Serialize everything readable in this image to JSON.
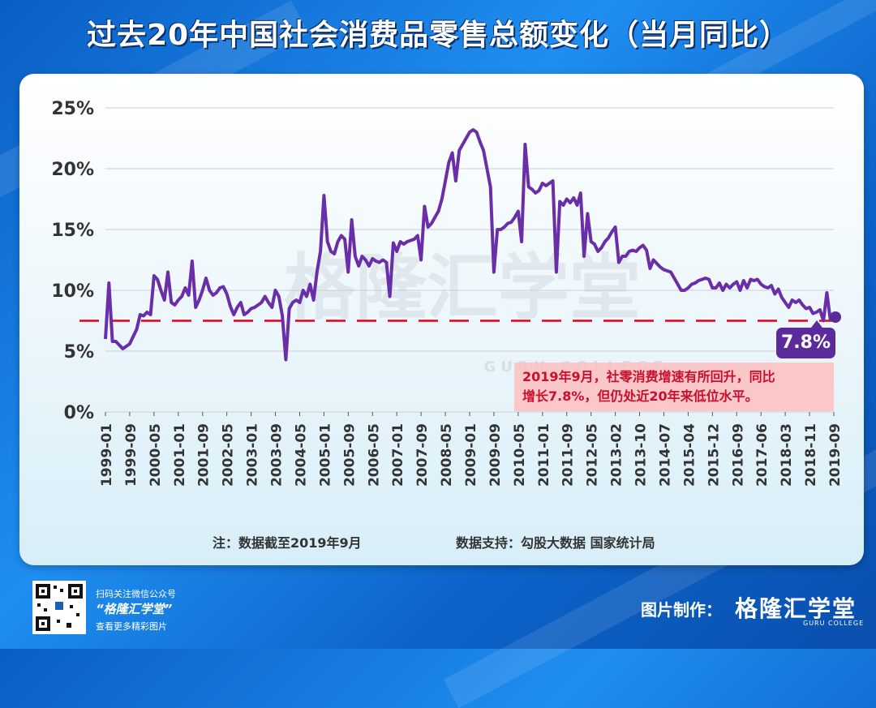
{
  "title": "过去20年中国社会消费品零售总额变化（当月同比）",
  "annotation": {
    "callout_line1": "2019年9月，社零消费增速有所回升，同比",
    "callout_line2": "增长7.8%，但仍处近20年来低位水平。",
    "value_label": "7.8%",
    "reference_line": 7.5,
    "reference_color": "#e2001a"
  },
  "watermark": {
    "text": "格隆汇学堂",
    "sub": "GURU COLLEGE"
  },
  "footnote": {
    "left": "注：数据截至2019年9月",
    "right": "数据支持：勾股大数据 国家统计局"
  },
  "footer": {
    "qr_line1": "扫码关注微信公众号",
    "qr_name": "“格隆汇学堂”",
    "qr_line3": "查看更多精彩图片",
    "credit_label": "图片制作：",
    "credit_logo": "格隆汇学堂",
    "credit_sub": "GURU COLLEGE"
  },
  "colors": {
    "line": "#6a2fa8",
    "accent": "#5b2a9b",
    "background": "#1f8ef0"
  },
  "chart_data": {
    "type": "line",
    "title": "过去20年中国社会消费品零售总额变化（当月同比）",
    "xlabel": "",
    "ylabel": "",
    "ylim": [
      0,
      25
    ],
    "yticks": [
      "0%",
      "5%",
      "10%",
      "15%",
      "20%",
      "25%"
    ],
    "grid": true,
    "xticks": [
      "1999-01",
      "1999-09",
      "2000-05",
      "2001-01",
      "2001-09",
      "2002-05",
      "2003-01",
      "2003-09",
      "2004-05",
      "2005-01",
      "2005-09",
      "2006-05",
      "2007-01",
      "2007-09",
      "2008-05",
      "2009-01",
      "2009-09",
      "2010-05",
      "2011-01",
      "2011-09",
      "2012-05",
      "2013-02",
      "2013-10",
      "2014-07",
      "2015-04",
      "2015-12",
      "2016-09",
      "2017-06",
      "2018-03",
      "2018-11",
      "2019-09"
    ],
    "series": [
      {
        "values": [
          6.0,
          10.6,
          5.8,
          5.8,
          5.5,
          5.2,
          5.4,
          5.6,
          6.2,
          6.8,
          8.0,
          7.9,
          8.2,
          8.0,
          11.2,
          10.9,
          10.0,
          9.2,
          11.5,
          9.0,
          8.8,
          9.2,
          9.5,
          10.2,
          9.6,
          12.4,
          8.6,
          9.2,
          10.0,
          11.0,
          10.0,
          9.6,
          9.8,
          10.2,
          10.3,
          9.7,
          8.7,
          8.0,
          8.6,
          9.0,
          8.0,
          8.2,
          8.5,
          8.6,
          8.8,
          9.0,
          9.5,
          9.0,
          8.6,
          10.0,
          9.5,
          7.9,
          4.3,
          8.5,
          9.0,
          9.2,
          9.0,
          10.0,
          9.5,
          10.5,
          9.2,
          11.5,
          13.2,
          17.8,
          14.0,
          13.2,
          13.0,
          14.0,
          14.5,
          14.2,
          11.5,
          15.8,
          12.8,
          12.0,
          12.8,
          12.5,
          12.0,
          12.6,
          12.4,
          12.3,
          12.5,
          12.3,
          9.5,
          13.9,
          13.2,
          14.0,
          13.8,
          14.0,
          14.1,
          14.2,
          14.5,
          12.5,
          16.9,
          15.2,
          15.5,
          16.0,
          16.5,
          17.5,
          19.0,
          20.5,
          21.3,
          19.0,
          21.5,
          22.0,
          22.5,
          23.0,
          23.2,
          23.0,
          22.2,
          21.5,
          20.0,
          18.5,
          11.5,
          15.0,
          15.0,
          15.2,
          15.5,
          15.6,
          16.0,
          16.5,
          14.0,
          22.0,
          18.5,
          18.3,
          18.0,
          18.2,
          18.8,
          18.6,
          18.8,
          19.0,
          11.5,
          17.3,
          17.0,
          17.5,
          17.2,
          17.6,
          17.0,
          18.0,
          12.8,
          16.3,
          14.0,
          13.8,
          13.2,
          13.5,
          14.0,
          14.3,
          14.8,
          15.2,
          12.3,
          12.8,
          12.8,
          13.2,
          13.3,
          13.2,
          13.5,
          13.7,
          13.3,
          11.8,
          12.5,
          12.2,
          11.9,
          11.7,
          11.6,
          11.5,
          11.0,
          10.5,
          10.0,
          10.0,
          10.2,
          10.5,
          10.6,
          10.8,
          10.9,
          11.0,
          10.9,
          10.2,
          10.2,
          10.6,
          10.0,
          10.5,
          10.2,
          10.5,
          10.7,
          10.0,
          10.8,
          10.2,
          10.9,
          10.8,
          10.9,
          10.5,
          10.3,
          10.2,
          10.4,
          9.7,
          10.1,
          9.4,
          9.0,
          8.6,
          9.2,
          9.0,
          9.2,
          8.8,
          8.5,
          8.6,
          8.1,
          8.2,
          8.4,
          7.5,
          9.8,
          7.6,
          7.8
        ]
      }
    ]
  }
}
